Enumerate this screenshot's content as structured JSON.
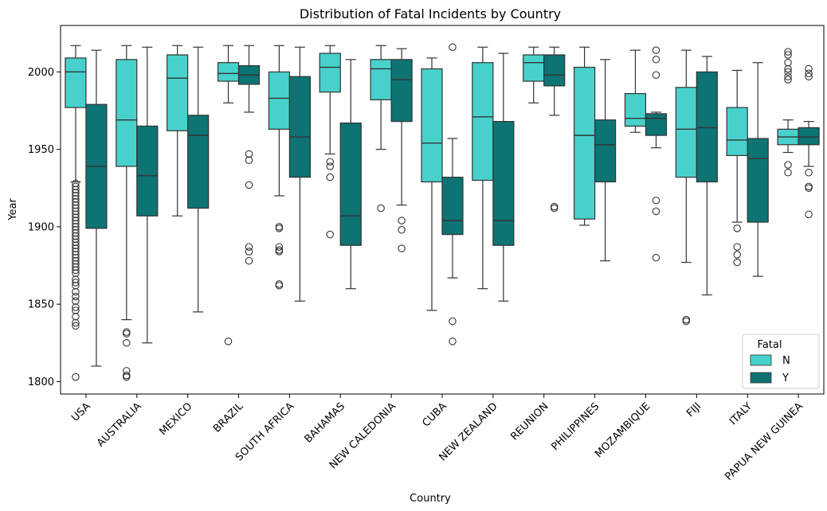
{
  "chart_data": {
    "type": "boxplot",
    "title": "Distribution of Fatal Incidents by Country",
    "xlabel": "Country",
    "ylabel": "Year",
    "ylim": [
      1792,
      2030
    ],
    "yticks": [
      1800,
      1850,
      1900,
      1950,
      2000
    ],
    "categories": [
      "USA",
      "AUSTRALIA",
      "MEXICO",
      "BRAZIL",
      "SOUTH AFRICA",
      "BAHAMAS",
      "NEW CALEDONIA",
      "CUBA",
      "NEW ZEALAND",
      "REUNION",
      "PHILIPPINES",
      "MOZAMBIQUE",
      "FIJI",
      "ITALY",
      "PAPUA NEW GUINEA"
    ],
    "legend": {
      "title": "Fatal",
      "position": "lower-right"
    },
    "series": [
      {
        "name": "N",
        "color": "#48D1CC",
        "boxes": [
          {
            "whislo": 1929,
            "q1": 1977,
            "med": 2000,
            "q3": 2009,
            "whishi": 2017,
            "fliers": [
              1928,
              1926,
              1924,
              1922,
              1920,
              1918,
              1916,
              1914,
              1912,
              1910,
              1908,
              1906,
              1904,
              1902,
              1900,
              1898,
              1896,
              1894,
              1892,
              1890,
              1888,
              1886,
              1884,
              1882,
              1880,
              1878,
              1876,
              1874,
              1872,
              1870,
              1866,
              1864,
              1862,
              1858,
              1855,
              1852,
              1848,
              1846,
              1842,
              1838,
              1836,
              1803
            ]
          },
          {
            "whislo": 1840,
            "q1": 1939,
            "med": 1969,
            "q3": 2008,
            "whishi": 2017,
            "fliers": [
              1832,
              1831,
              1825,
              1807,
              1804,
              1803
            ]
          },
          {
            "whislo": 1907,
            "q1": 1962,
            "med": 1996,
            "q3": 2011,
            "whishi": 2017,
            "fliers": []
          },
          {
            "whislo": 1980,
            "q1": 1994,
            "med": 1999,
            "q3": 2006,
            "whishi": 2017,
            "fliers": [
              1826
            ]
          },
          {
            "whislo": 1920,
            "q1": 1963,
            "med": 1983,
            "q3": 2000,
            "whishi": 2017,
            "fliers": [
              1900,
              1899,
              1887,
              1885,
              1884,
              1863,
              1862
            ]
          },
          {
            "whislo": 1947,
            "q1": 1987,
            "med": 2003,
            "q3": 2012,
            "whishi": 2017,
            "fliers": [
              1942,
              1939,
              1932,
              1895
            ]
          },
          {
            "whislo": 1950,
            "q1": 1982,
            "med": 2002,
            "q3": 2008,
            "whishi": 2017,
            "fliers": [
              1912
            ]
          },
          {
            "whislo": 1846,
            "q1": 1929,
            "med": 1954,
            "q3": 2002,
            "whishi": 2009,
            "fliers": []
          },
          {
            "whislo": 1860,
            "q1": 1930,
            "med": 1971,
            "q3": 2006,
            "whishi": 2016,
            "fliers": []
          },
          {
            "whislo": 1980,
            "q1": 1994,
            "med": 2006,
            "q3": 2011,
            "whishi": 2016,
            "fliers": []
          },
          {
            "whislo": 1901,
            "q1": 1905,
            "med": 1959,
            "q3": 2003,
            "whishi": 2016,
            "fliers": []
          },
          {
            "whislo": 1961,
            "q1": 1965,
            "med": 1970,
            "q3": 1986,
            "whishi": 2014,
            "fliers": []
          },
          {
            "whislo": 1877,
            "q1": 1932,
            "med": 1963,
            "q3": 1990,
            "whishi": 2014,
            "fliers": [
              1840,
              1839
            ]
          },
          {
            "whislo": 1903,
            "q1": 1946,
            "med": 1956,
            "q3": 1977,
            "whishi": 2001,
            "fliers": [
              1899,
              1887,
              1882,
              1877
            ]
          },
          {
            "whislo": 1948,
            "q1": 1953,
            "med": 1958,
            "q3": 1963,
            "whishi": 1969,
            "fliers": [
              2013,
              2011,
              2006,
              2002,
              2000,
              1997,
              1995,
              1940,
              1935
            ]
          }
        ]
      },
      {
        "name": "Y",
        "color": "#0E7373",
        "boxes": [
          {
            "whislo": 1810,
            "q1": 1899,
            "med": 1939,
            "q3": 1979,
            "whishi": 2014,
            "fliers": []
          },
          {
            "whislo": 1825,
            "q1": 1907,
            "med": 1933,
            "q3": 1965,
            "whishi": 2016,
            "fliers": []
          },
          {
            "whislo": 1845,
            "q1": 1912,
            "med": 1959,
            "q3": 1972,
            "whishi": 2016,
            "fliers": []
          },
          {
            "whislo": 1974,
            "q1": 1992,
            "med": 1998,
            "q3": 2004,
            "whishi": 2017,
            "fliers": [
              1947,
              1943,
              1927,
              1887,
              1884,
              1878
            ]
          },
          {
            "whislo": 1852,
            "q1": 1932,
            "med": 1958,
            "q3": 1997,
            "whishi": 2016,
            "fliers": []
          },
          {
            "whislo": 1860,
            "q1": 1888,
            "med": 1907,
            "q3": 1967,
            "whishi": 2008,
            "fliers": []
          },
          {
            "whislo": 1914,
            "q1": 1968,
            "med": 1995,
            "q3": 2008,
            "whishi": 2015,
            "fliers": [
              1904,
              1898,
              1886
            ]
          },
          {
            "whislo": 1867,
            "q1": 1895,
            "med": 1904,
            "q3": 1932,
            "whishi": 1957,
            "fliers": [
              2016,
              1839,
              1826
            ]
          },
          {
            "whislo": 1852,
            "q1": 1888,
            "med": 1904,
            "q3": 1968,
            "whishi": 2012,
            "fliers": []
          },
          {
            "whislo": 1972,
            "q1": 1991,
            "med": 1998,
            "q3": 2011,
            "whishi": 2016,
            "fliers": [
              1913,
              1912
            ]
          },
          {
            "whislo": 1878,
            "q1": 1929,
            "med": 1953,
            "q3": 1969,
            "whishi": 2008,
            "fliers": []
          },
          {
            "whislo": 1951,
            "q1": 1959,
            "med": 1970,
            "q3": 1973,
            "whishi": 1974,
            "fliers": [
              2014,
              2008,
              1998,
              1917,
              1910,
              1880
            ]
          },
          {
            "whislo": 1856,
            "q1": 1929,
            "med": 1964,
            "q3": 2000,
            "whishi": 2010,
            "fliers": []
          },
          {
            "whislo": 1868,
            "q1": 1903,
            "med": 1944,
            "q3": 1957,
            "whishi": 2006,
            "fliers": []
          },
          {
            "whislo": 1939,
            "q1": 1953,
            "med": 1958,
            "q3": 1964,
            "whishi": 1968,
            "fliers": [
              2002,
              1999,
              1997,
              1935,
              1926,
              1925,
              1908
            ]
          }
        ]
      }
    ]
  }
}
